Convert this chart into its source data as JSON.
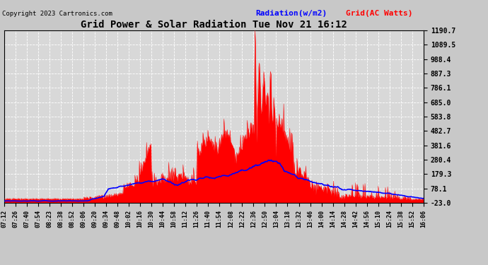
{
  "title": "Grid Power & Solar Radiation Tue Nov 21 16:12",
  "copyright": "Copyright 2023 Cartronics.com",
  "legend_radiation": "Radiation(w/m2)",
  "legend_grid": "Grid(AC Watts)",
  "yticks": [
    -23.0,
    78.1,
    179.3,
    280.4,
    381.6,
    482.7,
    583.8,
    685.0,
    786.1,
    887.3,
    988.4,
    1089.5,
    1190.7
  ],
  "ymin": -23.0,
  "ymax": 1190.7,
  "background_color": "#c8c8c8",
  "plot_bg_color": "#d8d8d8",
  "grid_color": "white",
  "radiation_color": "#ff0000",
  "grid_line_color": "#0000ff",
  "title_color": "black",
  "copyright_color": "black",
  "xtick_labels": [
    "07:12",
    "07:26",
    "07:40",
    "07:54",
    "08:23",
    "08:38",
    "08:52",
    "09:06",
    "09:20",
    "09:34",
    "09:48",
    "10:02",
    "10:16",
    "10:30",
    "10:44",
    "10:58",
    "11:12",
    "11:26",
    "11:40",
    "11:54",
    "12:08",
    "12:22",
    "12:36",
    "12:50",
    "13:04",
    "13:18",
    "13:32",
    "13:46",
    "14:00",
    "14:14",
    "14:28",
    "14:42",
    "14:56",
    "15:10",
    "15:24",
    "15:38",
    "15:52",
    "16:06"
  ],
  "n_xticks": 38
}
